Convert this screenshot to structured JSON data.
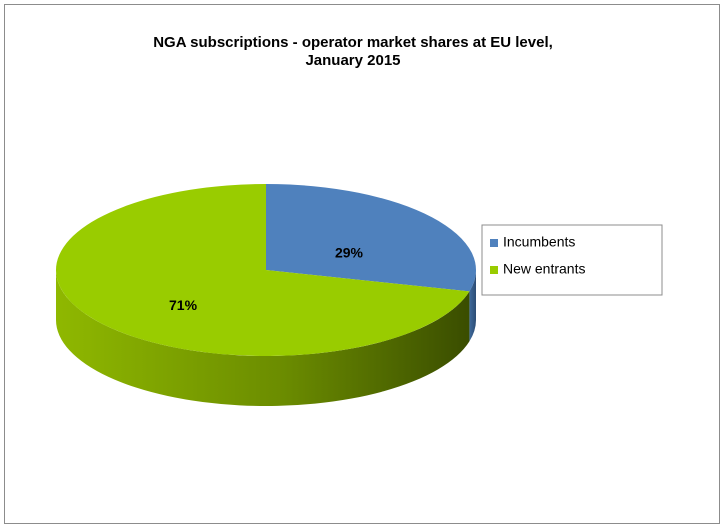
{
  "chart_data": {
    "type": "pie",
    "title": "NGA subscriptions - operator market shares at EU level, January 2015",
    "categories": [
      "Incumbents",
      "New entrants"
    ],
    "values": [
      29,
      71
    ],
    "value_labels": [
      "29%",
      "71%"
    ],
    "colors": [
      "#4f81bd",
      "#99cc00"
    ],
    "legend": "right"
  }
}
